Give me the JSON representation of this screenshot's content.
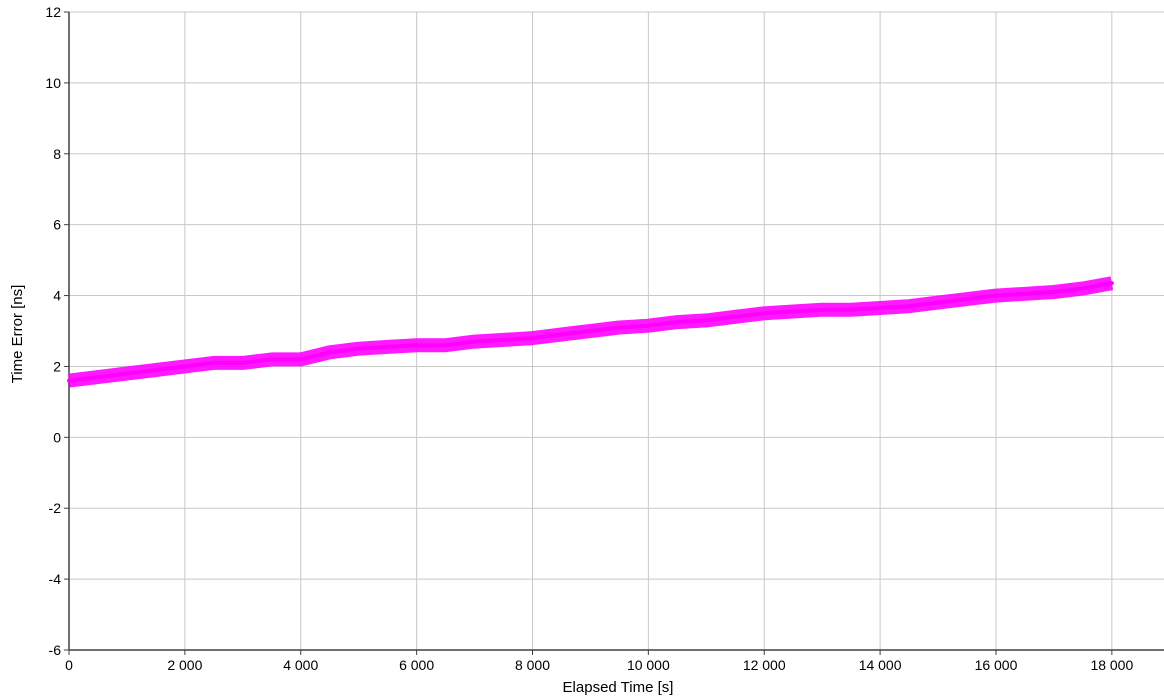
{
  "chart_data": {
    "type": "line",
    "title": "",
    "xlabel": "Elapsed Time [s]",
    "ylabel": "Time Error [ns]",
    "xlim": [
      0,
      18900
    ],
    "ylim": [
      -6,
      12
    ],
    "x_ticks": [
      0,
      2000,
      4000,
      6000,
      8000,
      10000,
      12000,
      14000,
      16000,
      18000
    ],
    "x_tick_labels": [
      "0",
      "2 000",
      "4 000",
      "6 000",
      "8 000",
      "10 000",
      "12 000",
      "14 000",
      "16 000",
      "18 000"
    ],
    "y_ticks": [
      -6,
      -4,
      -2,
      0,
      2,
      4,
      6,
      8,
      10,
      12
    ],
    "y_tick_labels": [
      "-6",
      "-4",
      "-2",
      "0",
      "2",
      "4",
      "6",
      "8",
      "10",
      "12"
    ],
    "grid": true,
    "series": [
      {
        "color": "#ff00ff",
        "x": [
          0,
          500,
          1000,
          1500,
          2000,
          2500,
          3000,
          3500,
          4000,
          4500,
          5000,
          5500,
          6000,
          6500,
          7000,
          7500,
          8000,
          8500,
          9000,
          9500,
          10000,
          10500,
          11000,
          11500,
          12000,
          12500,
          13000,
          13500,
          14000,
          14500,
          15000,
          15500,
          16000,
          16500,
          17000,
          17500,
          18000
        ],
        "values": [
          1.6,
          1.7,
          1.8,
          1.9,
          2.0,
          2.1,
          2.1,
          2.2,
          2.2,
          2.4,
          2.5,
          2.55,
          2.6,
          2.6,
          2.7,
          2.75,
          2.8,
          2.9,
          3.0,
          3.1,
          3.15,
          3.25,
          3.3,
          3.4,
          3.5,
          3.55,
          3.6,
          3.6,
          3.65,
          3.7,
          3.8,
          3.9,
          4.0,
          4.05,
          4.1,
          4.2,
          4.35
        ]
      }
    ]
  }
}
